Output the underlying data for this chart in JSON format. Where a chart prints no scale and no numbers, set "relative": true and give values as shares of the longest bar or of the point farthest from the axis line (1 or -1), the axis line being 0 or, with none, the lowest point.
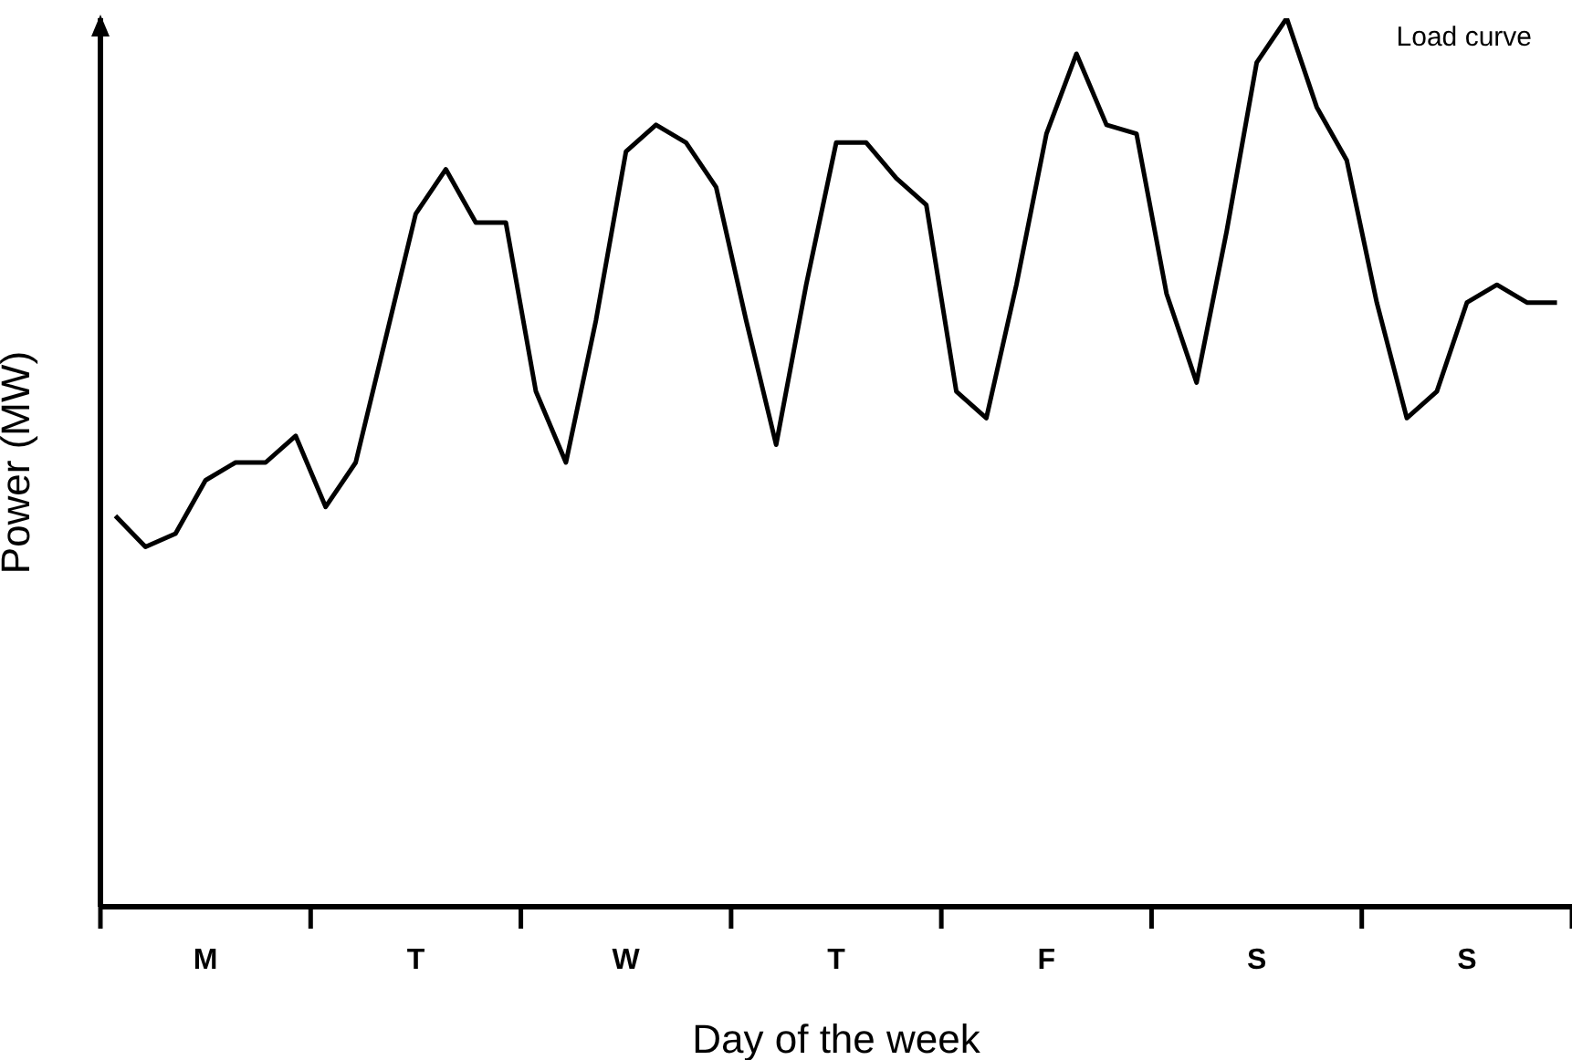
{
  "chart_data": {
    "type": "line",
    "relative": true,
    "xlabel": "Day of the week",
    "ylabel": "Power (MW)",
    "marker": "none",
    "line_style": "solid",
    "grid": false,
    "categories": [
      null,
      null,
      null,
      "M",
      null,
      null,
      null,
      null,
      null,
      null,
      "T",
      null,
      null,
      null,
      null,
      null,
      null,
      "W",
      null,
      null,
      null,
      null,
      null,
      null,
      "T",
      null,
      null,
      null,
      null,
      null,
      null,
      "F",
      null,
      null,
      null,
      null,
      null,
      null,
      "S",
      null,
      null,
      null,
      null,
      null,
      null,
      "S",
      null,
      null,
      null
    ],
    "series": [
      {
        "name": "Load curve",
        "color": "#000000",
        "values": [
          0.44,
          0.405,
          0.42,
          0.48,
          0.5,
          0.5,
          0.53,
          0.45,
          0.5,
          0.64,
          0.78,
          0.83,
          0.77,
          0.77,
          0.58,
          0.5,
          0.66,
          0.85,
          0.88,
          0.86,
          0.81,
          0.66,
          0.52,
          0.7,
          0.86,
          0.86,
          0.82,
          0.79,
          0.58,
          0.55,
          0.7,
          0.87,
          0.96,
          0.88,
          0.87,
          0.69,
          0.59,
          0.76,
          0.95,
          1,
          0.9,
          0.84,
          0.68,
          0.55,
          0.58,
          0.68,
          0.7,
          0.68,
          0.68
        ]
      }
    ]
  }
}
